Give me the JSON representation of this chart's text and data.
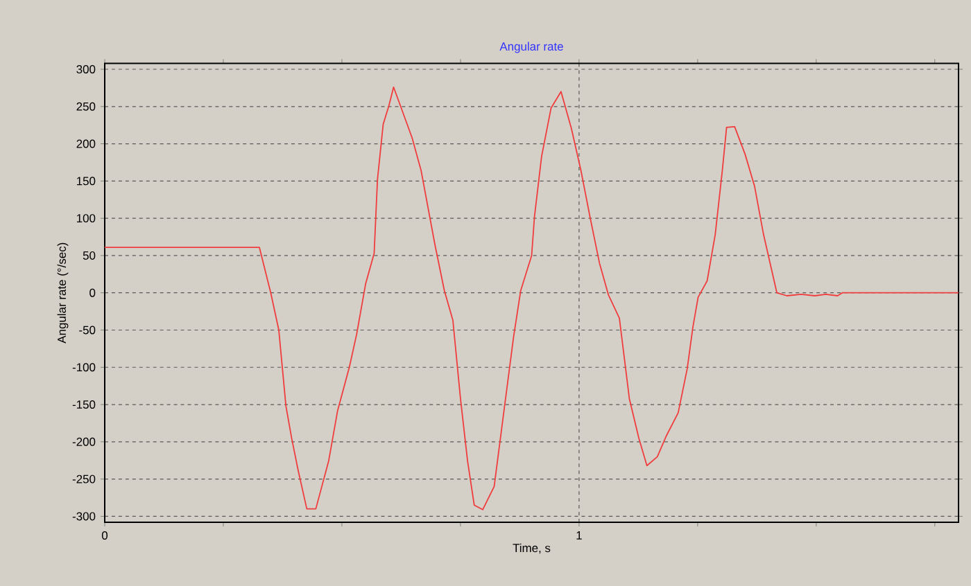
{
  "chart_data": {
    "type": "line",
    "title": "Angular rate",
    "xlabel": "Time, s",
    "ylabel": "Angular rate (°/sec)",
    "xlim": [
      0,
      1.8
    ],
    "ylim": [
      -308,
      308
    ],
    "xticks": [
      0,
      {
        "value": 0.25,
        "label": null
      },
      {
        "value": 0.5,
        "label": null
      },
      {
        "value": 0.75,
        "label": null
      },
      1,
      {
        "value": 1.25,
        "label": null
      },
      {
        "value": 1.5,
        "label": null
      },
      {
        "value": 1.75,
        "label": null
      }
    ],
    "yticks": [
      -300,
      -250,
      -200,
      -150,
      -100,
      -50,
      0,
      50,
      100,
      150,
      200,
      250,
      300
    ],
    "grid": true,
    "marker": "none",
    "line_style": "solid",
    "x": [
      0,
      0.326,
      0.35,
      0.367,
      0.382,
      0.394,
      0.408,
      0.426,
      0.445,
      0.472,
      0.491,
      0.516,
      0.531,
      0.55,
      0.568,
      0.575,
      0.587,
      0.599,
      0.609,
      0.648,
      0.667,
      0.696,
      0.716,
      0.734,
      0.75,
      0.765,
      0.779,
      0.797,
      0.821,
      0.843,
      0.862,
      0.877,
      0.9,
      0.906,
      0.921,
      0.941,
      0.962,
      0.984,
      1.004,
      1.023,
      1.043,
      1.062,
      1.085,
      1.106,
      1.126,
      1.143,
      1.165,
      1.184,
      1.209,
      1.228,
      1.24,
      1.251,
      1.27,
      1.287,
      1.302,
      1.311,
      1.328,
      1.35,
      1.37,
      1.389,
      1.417,
      1.438,
      1.468,
      1.497,
      1.52,
      1.545,
      1.555,
      1.8
    ],
    "series": [
      {
        "color": "#f03c3c",
        "values": [
          61,
          61,
          0,
          -50,
          -152,
          -195,
          -239,
          -290,
          -290,
          -226,
          -158,
          -99,
          -56,
          12,
          53,
          152,
          226,
          251,
          276,
          208,
          164,
          65,
          3,
          -37,
          -142,
          -226,
          -285,
          -291,
          -260,
          -152,
          -59,
          3,
          50,
          102,
          183,
          248,
          270,
          220,
          164,
          102,
          40,
          -3,
          -34,
          -142,
          -195,
          -232,
          -220,
          -192,
          -161,
          -102,
          -46,
          -6,
          16,
          78,
          164,
          222,
          223,
          186,
          143,
          78,
          0,
          -4,
          -2,
          -4,
          -2,
          -4,
          0,
          0
        ]
      }
    ]
  }
}
